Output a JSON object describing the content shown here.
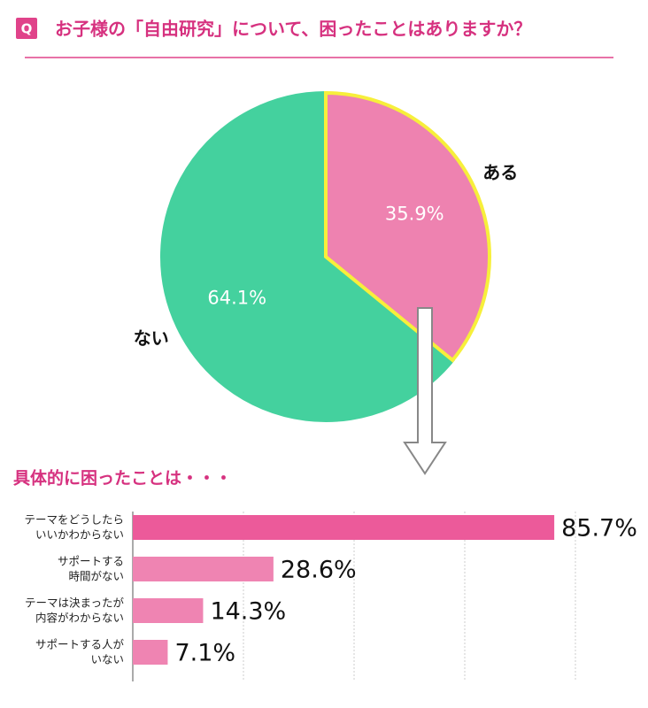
{
  "header": {
    "badge": "Q",
    "title": "お子様の「自由研究」について、困ったことはありますか？"
  },
  "chart_data": [
    {
      "type": "pie",
      "categories": [
        "ある",
        "ない"
      ],
      "values": [
        35.9,
        64.1
      ],
      "value_labels": [
        "35.9%",
        "64.1%"
      ],
      "colors": [
        "#ee82b0",
        "#44d19e"
      ],
      "edgecolors": [
        "#f7ef3b",
        "#44d19e"
      ]
    },
    {
      "type": "bar",
      "orientation": "horizontal",
      "title": "具体的に困ったことは・・・",
      "categories": [
        "テーマをどうしたら\nいいかわからない",
        "サポートする\n時間がない",
        "テーマは決まったが\n内容がわからない",
        "サポートする人が\nいない"
      ],
      "values": [
        85.7,
        28.6,
        14.3,
        7.1
      ],
      "value_labels": [
        "85.7%",
        "28.6%",
        "14.3%",
        "7.1%"
      ],
      "colors": [
        "#ec5a9a",
        "#ef84b2",
        "#ef84b2",
        "#ef84b2"
      ],
      "xlim": [
        0,
        90
      ],
      "xticks": [
        0,
        22.5,
        45,
        67.5,
        90
      ],
      "grid": true
    }
  ]
}
